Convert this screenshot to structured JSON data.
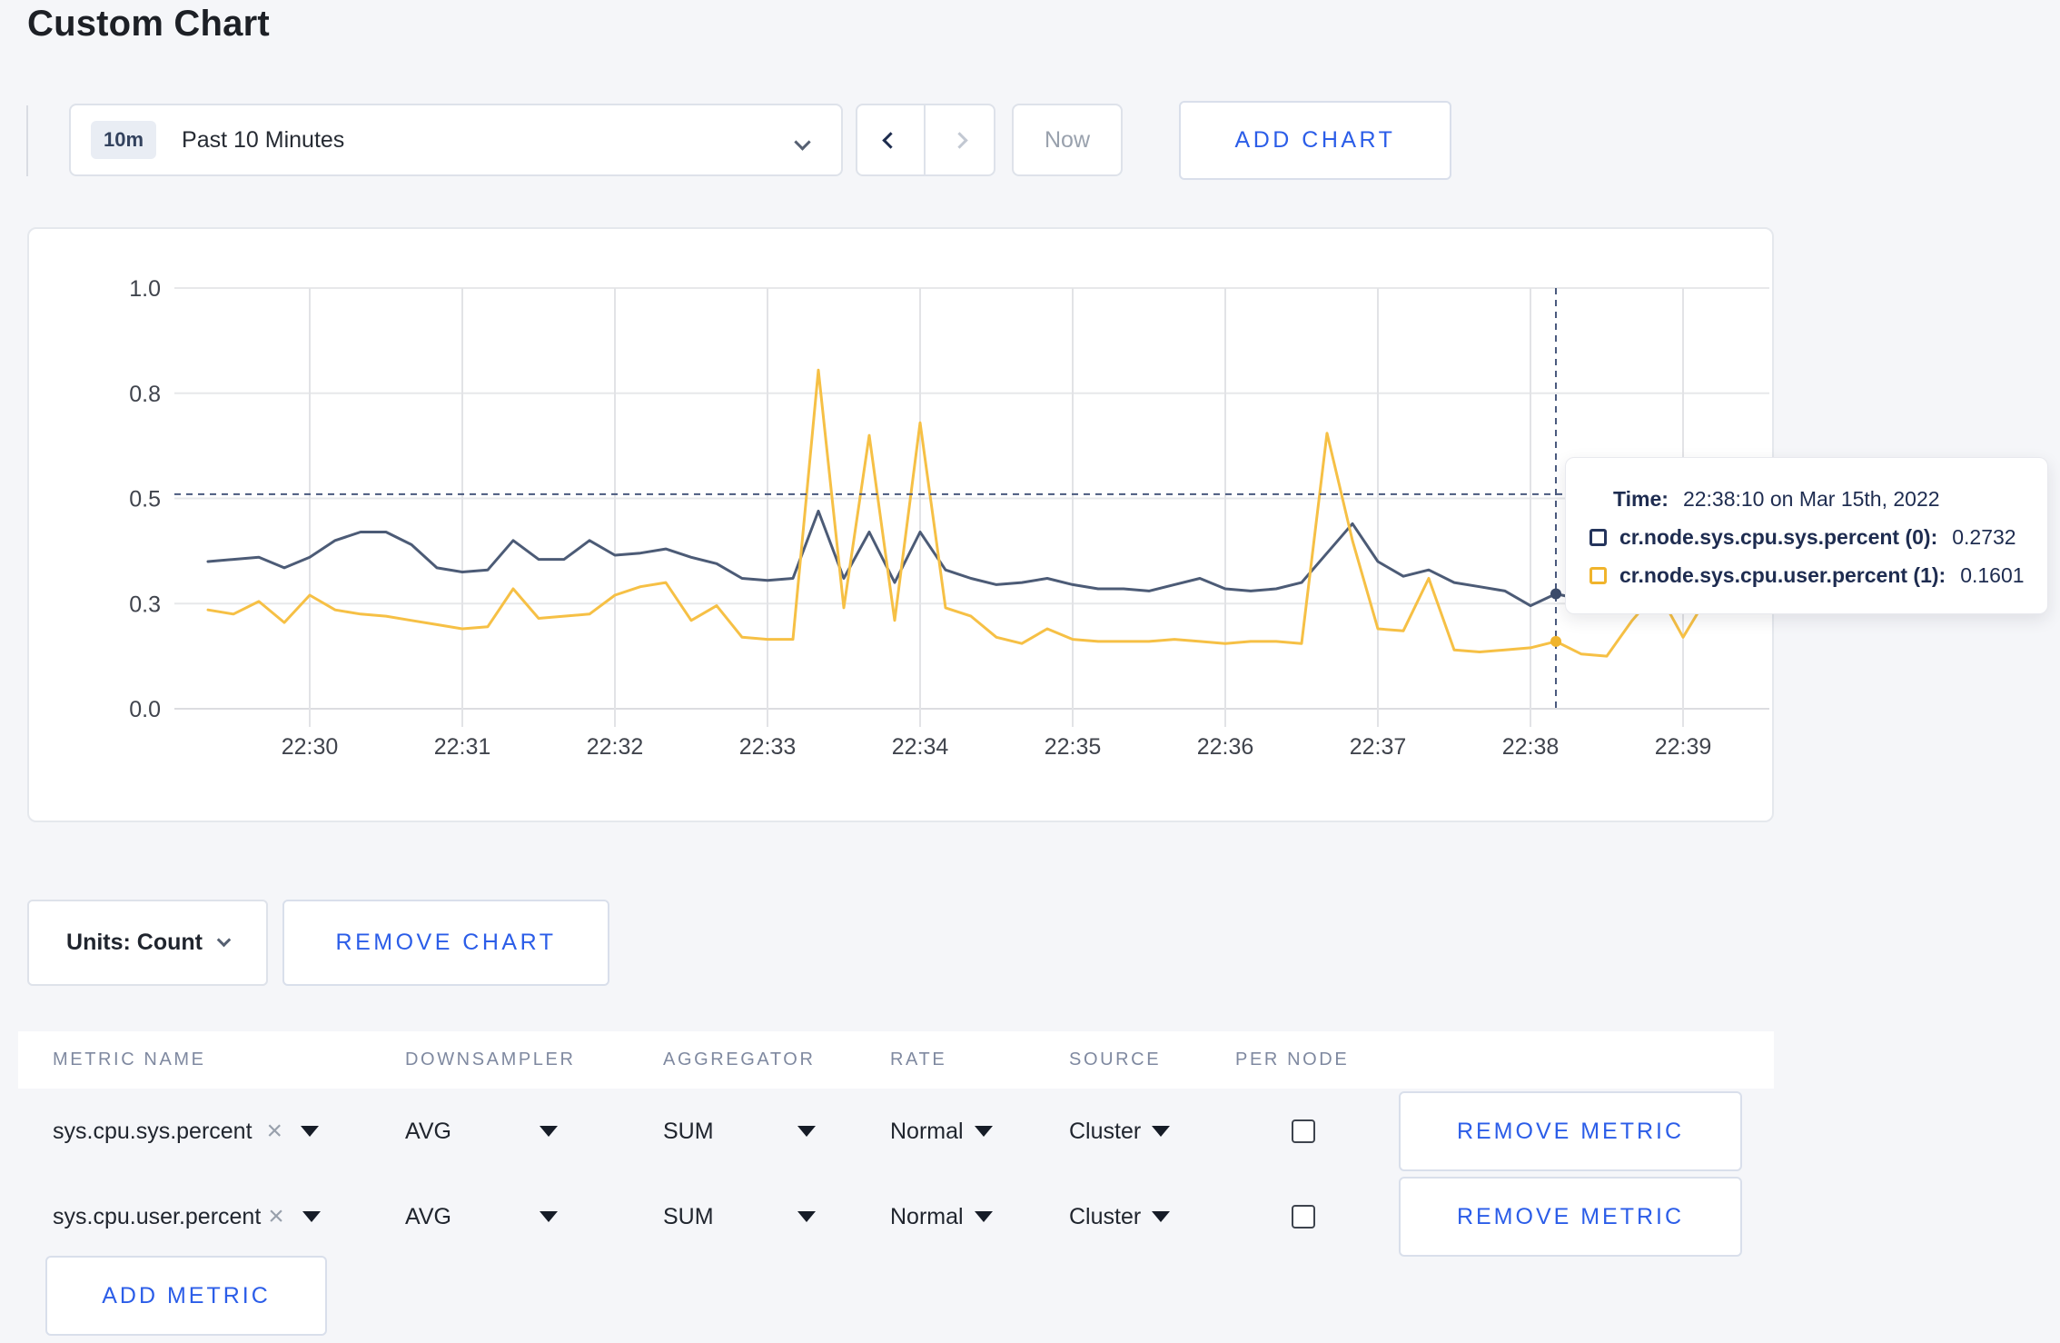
{
  "page": {
    "title": "Custom Chart"
  },
  "ui": {
    "close_glyph": "×"
  },
  "toolbar": {
    "time_scale_badge": "10m",
    "time_scale_label": "Past 10 Minutes",
    "now_label": "Now",
    "add_chart_label": "ADD CHART"
  },
  "chart_controls": {
    "units_label": "Units: Count",
    "remove_chart_label": "REMOVE CHART",
    "add_metric_label": "ADD METRIC"
  },
  "tooltip": {
    "time_label": "Time:",
    "time_value": "22:38:10 on Mar 15th, 2022",
    "rows": [
      {
        "name": "cr.node.sys.cpu.sys.percent (0):",
        "value": "0.2732",
        "swatch_color": "#24345c"
      },
      {
        "name": "cr.node.sys.cpu.user.percent (1):",
        "value": "0.1601",
        "swatch_color": "#f0b42c"
      }
    ]
  },
  "metrics_table": {
    "headers": [
      "METRIC NAME",
      "DOWNSAMPLER",
      "AGGREGATOR",
      "RATE",
      "SOURCE",
      "PER NODE"
    ],
    "remove_metric_label": "REMOVE METRIC",
    "rows": [
      {
        "metric": "sys.cpu.sys.percent",
        "downsampler": "AVG",
        "aggregator": "SUM",
        "rate": "Normal",
        "source": "Cluster",
        "per_node_checked": false
      },
      {
        "metric": "sys.cpu.user.percent",
        "downsampler": "AVG",
        "aggregator": "SUM",
        "rate": "Normal",
        "source": "Cluster",
        "per_node_checked": false
      }
    ]
  },
  "chart_data": {
    "type": "line",
    "ylim": [
      0,
      1
    ],
    "y_ticks": [
      {
        "label": "1.0",
        "value": 1.0
      },
      {
        "label": "0.8",
        "value": 0.75
      },
      {
        "label": "0.5",
        "value": 0.5
      },
      {
        "label": "0.3",
        "value": 0.25
      },
      {
        "label": "0.0",
        "value": 0.0
      }
    ],
    "x_ticks": [
      "22:30",
      "22:31",
      "22:32",
      "22:33",
      "22:34",
      "22:35",
      "22:36",
      "22:37",
      "22:38",
      "22:39"
    ],
    "start_time": "22:29:20",
    "interval_seconds": 10,
    "grid": true,
    "legend_position": "tooltip",
    "series": [
      {
        "name": "cr.node.sys.cpu.sys.percent",
        "color": "#4c5b76",
        "marker_color": "#3c4c6b",
        "values": [
          0.35,
          0.355,
          0.36,
          0.335,
          0.36,
          0.4,
          0.42,
          0.42,
          0.39,
          0.335,
          0.325,
          0.33,
          0.4,
          0.355,
          0.355,
          0.4,
          0.365,
          0.37,
          0.38,
          0.36,
          0.345,
          0.31,
          0.305,
          0.31,
          0.47,
          0.31,
          0.42,
          0.3,
          0.42,
          0.33,
          0.31,
          0.295,
          0.3,
          0.31,
          0.295,
          0.285,
          0.285,
          0.28,
          0.295,
          0.31,
          0.285,
          0.28,
          0.285,
          0.3,
          0.37,
          0.44,
          0.35,
          0.315,
          0.33,
          0.3,
          0.29,
          0.28,
          0.245,
          0.2732,
          0.26,
          0.255,
          0.26,
          0.25,
          0.255,
          0.25,
          0.25
        ]
      },
      {
        "name": "cr.node.sys.cpu.user.percent",
        "color": "#f6c045",
        "marker_color": "#f0b42c",
        "values": [
          0.235,
          0.225,
          0.255,
          0.205,
          0.27,
          0.235,
          0.225,
          0.22,
          0.21,
          0.2,
          0.19,
          0.195,
          0.285,
          0.215,
          0.22,
          0.225,
          0.27,
          0.29,
          0.3,
          0.21,
          0.245,
          0.17,
          0.165,
          0.165,
          0.805,
          0.24,
          0.65,
          0.21,
          0.68,
          0.24,
          0.22,
          0.17,
          0.155,
          0.19,
          0.165,
          0.16,
          0.16,
          0.16,
          0.165,
          0.16,
          0.155,
          0.16,
          0.16,
          0.155,
          0.655,
          0.4,
          0.19,
          0.185,
          0.31,
          0.14,
          0.135,
          0.14,
          0.145,
          0.1601,
          0.13,
          0.125,
          0.21,
          0.28,
          0.17,
          0.27,
          0.26
        ]
      }
    ],
    "crosshair": {
      "time": "22:38:10",
      "hover_value": 0.51,
      "points": [
        {
          "series_index": 0,
          "value": 0.2732
        },
        {
          "series_index": 1,
          "value": 0.1601
        }
      ]
    }
  }
}
